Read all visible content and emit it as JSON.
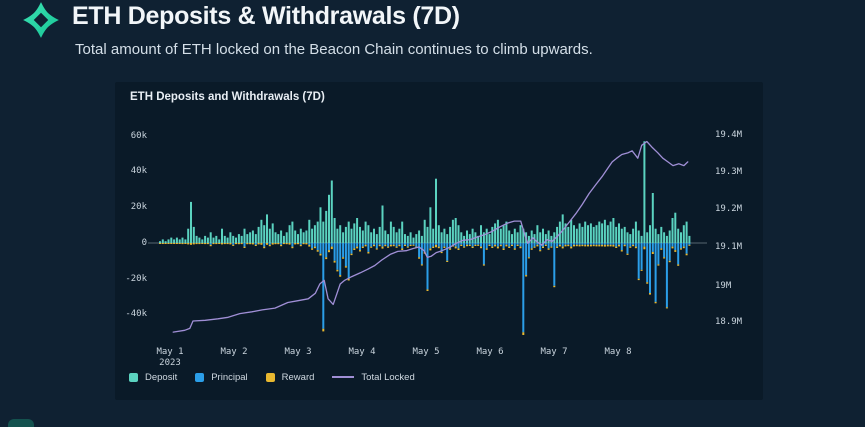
{
  "page": {
    "title": "ETH Deposits & Withdrawals (7D)",
    "subtitle": "Total amount of ETH locked on the Beacon Chain continues to climb upwards."
  },
  "colors": {
    "page_bg": "#0f2132",
    "panel_bg": "#0a1a28",
    "logo_teal_light": "#3ce3b4",
    "logo_teal_dark": "#17c495",
    "deposit": "#5bd3c0",
    "principal": "#2b9ee8",
    "reward": "#e8b830",
    "total_locked": "#a08fd6",
    "zero_line": "#55656f",
    "axis_text": "#c9d4dd"
  },
  "chart_data": {
    "type": "bar",
    "subtype": "stacked-bars-with-line-dual-axis",
    "title": "ETH Deposits and Withdrawals (7D)",
    "left_axis": {
      "ticks": [
        "60k",
        "40k",
        "20k",
        "0",
        "-20k",
        "-40k"
      ],
      "tick_values_k": [
        60,
        40,
        20,
        0,
        -20,
        -40
      ],
      "units": "ETH (thousands) per interval",
      "range_k": [
        -63,
        63
      ]
    },
    "right_axis": {
      "ticks": [
        "19.4M",
        "19.3M",
        "19.2M",
        "19.1M",
        "19M",
        "18.9M"
      ],
      "tick_values_m": [
        19.4,
        19.3,
        19.2,
        19.1,
        19.0,
        18.9
      ],
      "units": "ETH (millions) total locked",
      "range_m": [
        18.81,
        19.43
      ]
    },
    "x_axis": {
      "ticks": [
        "May 1",
        "May 2",
        "May 3",
        "May 4",
        "May 5",
        "May 6",
        "May 7",
        "May 8"
      ],
      "year_subline": "2023",
      "grid": false
    },
    "legend": [
      {
        "label": "Deposit",
        "swatch": "square",
        "color": "#5bd3c0"
      },
      {
        "label": "Principal",
        "swatch": "square",
        "color": "#2b9ee8"
      },
      {
        "label": "Reward",
        "swatch": "square",
        "color": "#e8b830"
      },
      {
        "label": "Total Locked",
        "swatch": "line",
        "color": "#a08fd6"
      }
    ],
    "bars": {
      "note": "values are [deposit_k_up, principal_k_down, reward_k_down] per interval; x = start_day + i*step_day (days after May 1 2023)",
      "start_day": -0.156,
      "step_day": 0.044,
      "values": [
        [
          1,
          0,
          0.3
        ],
        [
          2,
          0,
          0.4
        ],
        [
          1,
          0,
          0.3
        ],
        [
          2,
          0,
          0.5
        ],
        [
          3,
          0,
          0.5
        ],
        [
          2,
          0,
          0.4
        ],
        [
          3,
          0,
          0.5
        ],
        [
          2,
          0,
          0.5
        ],
        [
          3,
          0,
          0.6
        ],
        [
          2,
          0,
          0.5
        ],
        [
          8,
          0,
          0.8
        ],
        [
          23,
          0,
          1
        ],
        [
          9,
          0,
          0.8
        ],
        [
          4,
          0,
          0.6
        ],
        [
          3,
          0,
          0.6
        ],
        [
          2,
          0,
          0.5
        ],
        [
          4,
          0,
          0.6
        ],
        [
          3,
          0,
          0.6
        ],
        [
          6,
          -1,
          0.8
        ],
        [
          3,
          0,
          0.6
        ],
        [
          4,
          0,
          0.6
        ],
        [
          2,
          0,
          0.5
        ],
        [
          8,
          0,
          0.8
        ],
        [
          4,
          0,
          0.6
        ],
        [
          3,
          0,
          0.6
        ],
        [
          6,
          0,
          0.8
        ],
        [
          4,
          -1,
          0.6
        ],
        [
          3,
          0,
          0.6
        ],
        [
          5,
          0,
          0.7
        ],
        [
          4,
          0,
          0.6
        ],
        [
          8,
          -2,
          0.8
        ],
        [
          5,
          0,
          0.7
        ],
        [
          6,
          0,
          0.7
        ],
        [
          7,
          0,
          0.8
        ],
        [
          5,
          -1,
          0.7
        ],
        [
          9,
          0,
          0.8
        ],
        [
          13,
          0,
          1
        ],
        [
          10,
          -2,
          0.9
        ],
        [
          16,
          0,
          1
        ],
        [
          8,
          -1,
          0.8
        ],
        [
          11,
          0,
          0.9
        ],
        [
          6,
          0,
          0.7
        ],
        [
          5,
          0,
          0.7
        ],
        [
          7,
          -1,
          0.8
        ],
        [
          4,
          0,
          0.6
        ],
        [
          6,
          0,
          0.7
        ],
        [
          10,
          0,
          0.9
        ],
        [
          12,
          -2,
          0.9
        ],
        [
          7,
          0,
          0.8
        ],
        [
          5,
          0,
          0.7
        ],
        [
          8,
          -1,
          0.8
        ],
        [
          6,
          0,
          0.7
        ],
        [
          7,
          0,
          0.8
        ],
        [
          13,
          -1,
          1
        ],
        [
          8,
          -3,
          0.8
        ],
        [
          10,
          -2,
          0.9
        ],
        [
          12,
          -4,
          0.9
        ],
        [
          20,
          -6,
          1
        ],
        [
          12,
          -48,
          1.5
        ],
        [
          18,
          -8,
          1
        ],
        [
          27,
          -4,
          1.2
        ],
        [
          35,
          -2,
          1.4
        ],
        [
          14,
          -10,
          1
        ],
        [
          8,
          -15,
          0.9
        ],
        [
          10,
          -18,
          0.9
        ],
        [
          6,
          -8,
          0.8
        ],
        [
          9,
          -13,
          0.8
        ],
        [
          12,
          -20,
          1
        ],
        [
          8,
          -6,
          0.8
        ],
        [
          11,
          -3,
          0.9
        ],
        [
          14,
          -2,
          1
        ],
        [
          9,
          -4,
          0.8
        ],
        [
          7,
          -2,
          0.8
        ],
        [
          12,
          -1,
          0.9
        ],
        [
          10,
          -5,
          0.9
        ],
        [
          6,
          -2,
          0.7
        ],
        [
          8,
          -1,
          0.8
        ],
        [
          5,
          -3,
          0.7
        ],
        [
          9,
          -1,
          0.8
        ],
        [
          21,
          -2,
          1.1
        ],
        [
          7,
          -1,
          0.8
        ],
        [
          5,
          -2,
          0.7
        ],
        [
          12,
          -1,
          0.9
        ],
        [
          9,
          -1,
          0.8
        ],
        [
          6,
          -2,
          0.7
        ],
        [
          8,
          -1,
          0.8
        ],
        [
          12,
          -3,
          0.9
        ],
        [
          5,
          -1,
          0.7
        ],
        [
          4,
          -2,
          0.6
        ],
        [
          6,
          -1,
          0.7
        ],
        [
          3,
          -1,
          0.5
        ],
        [
          5,
          -2,
          0.7
        ],
        [
          7,
          -8,
          0.8
        ],
        [
          4,
          -12,
          0.6
        ],
        [
          13,
          -5,
          1
        ],
        [
          9,
          -26,
          0.9
        ],
        [
          20,
          -3,
          1.1
        ],
        [
          8,
          -2,
          0.8
        ],
        [
          36,
          -1,
          1.4
        ],
        [
          10,
          -2,
          0.9
        ],
        [
          6,
          -5,
          0.7
        ],
        [
          8,
          -2,
          0.8
        ],
        [
          5,
          -10,
          0.7
        ],
        [
          9,
          -3,
          0.8
        ],
        [
          13,
          -1,
          1
        ],
        [
          14,
          -2,
          1
        ],
        [
          10,
          -3,
          0.9
        ],
        [
          6,
          -1,
          0.7
        ],
        [
          4,
          -2,
          0.6
        ],
        [
          7,
          -1,
          0.8
        ],
        [
          5,
          -1,
          0.7
        ],
        [
          8,
          -2,
          0.8
        ],
        [
          6,
          -1,
          0.7
        ],
        [
          4,
          -1,
          0.6
        ],
        [
          10,
          -2,
          0.9
        ],
        [
          6,
          -12,
          0.7
        ],
        [
          8,
          -3,
          0.8
        ],
        [
          5,
          -1,
          0.7
        ],
        [
          9,
          -2,
          0.8
        ],
        [
          11,
          -1,
          0.9
        ],
        [
          13,
          -2,
          1
        ],
        [
          8,
          -1,
          0.8
        ],
        [
          10,
          -3,
          0.9
        ],
        [
          12,
          -1,
          0.9
        ],
        [
          7,
          -2,
          0.8
        ],
        [
          5,
          -1,
          0.7
        ],
        [
          8,
          -3,
          0.8
        ],
        [
          6,
          -1,
          0.7
        ],
        [
          10,
          -2,
          0.9
        ],
        [
          8,
          -50,
          1.5
        ],
        [
          6,
          -18,
          0.8
        ],
        [
          4,
          -8,
          0.6
        ],
        [
          7,
          -3,
          0.8
        ],
        [
          5,
          -2,
          0.7
        ],
        [
          10,
          -1,
          0.9
        ],
        [
          6,
          -4,
          0.7
        ],
        [
          8,
          -2,
          0.8
        ],
        [
          5,
          -1,
          0.7
        ],
        [
          7,
          -3,
          0.8
        ],
        [
          4,
          -2,
          0.6
        ],
        [
          6,
          -24,
          0.8
        ],
        [
          9,
          -2,
          0.8
        ],
        [
          12,
          -1,
          0.9
        ],
        [
          16,
          -2,
          1
        ],
        [
          11,
          -1,
          0.9
        ],
        [
          9,
          -1,
          0.8
        ],
        [
          13,
          -2,
          1
        ],
        [
          10,
          -1,
          0.9
        ],
        [
          8,
          -1,
          0.8
        ],
        [
          11,
          -1,
          0.9
        ],
        [
          9,
          -1,
          0.8
        ],
        [
          12,
          -1,
          0.9
        ],
        [
          10,
          -1,
          0.9
        ],
        [
          11,
          -1,
          0.9
        ],
        [
          9,
          -1,
          0.8
        ],
        [
          10,
          -1,
          0.9
        ],
        [
          12,
          -1,
          0.9
        ],
        [
          11,
          -1,
          0.9
        ],
        [
          13,
          -1,
          1
        ],
        [
          10,
          -1,
          0.9
        ],
        [
          12,
          -1,
          0.9
        ],
        [
          14,
          -1,
          1
        ],
        [
          9,
          -2,
          0.8
        ],
        [
          11,
          -1,
          0.9
        ],
        [
          8,
          -4,
          0.8
        ],
        [
          9,
          -1,
          0.8
        ],
        [
          6,
          -6,
          0.7
        ],
        [
          5,
          -2,
          0.7
        ],
        [
          8,
          -1,
          0.8
        ],
        [
          12,
          -2,
          0.9
        ],
        [
          7,
          -20,
          0.8
        ],
        [
          4,
          -15,
          0.6
        ],
        [
          57,
          -2,
          1.5
        ],
        [
          6,
          -22,
          0.8
        ],
        [
          10,
          -28,
          0.9
        ],
        [
          28,
          -5,
          1.2
        ],
        [
          8,
          -33,
          0.8
        ],
        [
          5,
          -12,
          0.7
        ],
        [
          9,
          -3,
          0.8
        ],
        [
          6,
          -8,
          0.7
        ],
        [
          4,
          -36,
          0.6
        ],
        [
          7,
          -10,
          0.8
        ],
        [
          14,
          -2,
          1
        ],
        [
          17,
          -4,
          1
        ],
        [
          8,
          -12,
          0.8
        ],
        [
          6,
          -3,
          0.7
        ],
        [
          10,
          -2,
          0.9
        ],
        [
          12,
          -6,
          0.9
        ],
        [
          4,
          -1,
          0.5
        ]
      ]
    },
    "total_locked": {
      "note": "points are [days_after_may1, total_locked_millions]",
      "points": [
        [
          0.05,
          18.87
        ],
        [
          0.23,
          18.875
        ],
        [
          0.31,
          18.88
        ],
        [
          0.36,
          18.9
        ],
        [
          0.55,
          18.902
        ],
        [
          0.75,
          18.906
        ],
        [
          0.91,
          18.91
        ],
        [
          1.09,
          18.92
        ],
        [
          1.28,
          18.925
        ],
        [
          1.44,
          18.93
        ],
        [
          1.64,
          18.935
        ],
        [
          1.84,
          18.95
        ],
        [
          2.0,
          18.955
        ],
        [
          2.16,
          18.96
        ],
        [
          2.27,
          18.975
        ],
        [
          2.34,
          19.0
        ],
        [
          2.41,
          19.01
        ],
        [
          2.47,
          18.96
        ],
        [
          2.55,
          18.945
        ],
        [
          2.66,
          19.0
        ],
        [
          2.73,
          19.01
        ],
        [
          2.84,
          19.02
        ],
        [
          2.97,
          19.03
        ],
        [
          3.09,
          19.04
        ],
        [
          3.2,
          19.05
        ],
        [
          3.31,
          19.065
        ],
        [
          3.44,
          19.08
        ],
        [
          3.56,
          19.088
        ],
        [
          3.69,
          19.09
        ],
        [
          3.8,
          19.096
        ],
        [
          3.89,
          19.1
        ],
        [
          3.97,
          19.09
        ],
        [
          4.02,
          19.072
        ],
        [
          4.08,
          19.075
        ],
        [
          4.16,
          19.085
        ],
        [
          4.25,
          19.09
        ],
        [
          4.38,
          19.1
        ],
        [
          4.47,
          19.11
        ],
        [
          4.58,
          19.118
        ],
        [
          4.69,
          19.12
        ],
        [
          4.8,
          19.127
        ],
        [
          4.91,
          19.133
        ],
        [
          5.03,
          19.142
        ],
        [
          5.16,
          19.155
        ],
        [
          5.28,
          19.165
        ],
        [
          5.38,
          19.17
        ],
        [
          5.48,
          19.17
        ],
        [
          5.55,
          19.13
        ],
        [
          5.59,
          19.11
        ],
        [
          5.67,
          19.125
        ],
        [
          5.73,
          19.115
        ],
        [
          5.81,
          19.105
        ],
        [
          5.89,
          19.12
        ],
        [
          5.97,
          19.115
        ],
        [
          6.06,
          19.13
        ],
        [
          6.16,
          19.15
        ],
        [
          6.25,
          19.17
        ],
        [
          6.34,
          19.19
        ],
        [
          6.44,
          19.215
        ],
        [
          6.55,
          19.245
        ],
        [
          6.66,
          19.27
        ],
        [
          6.75,
          19.29
        ],
        [
          6.83,
          19.31
        ],
        [
          6.91,
          19.33
        ],
        [
          6.98,
          19.34
        ],
        [
          7.06,
          19.35
        ],
        [
          7.16,
          19.355
        ],
        [
          7.22,
          19.36
        ],
        [
          7.31,
          19.34
        ],
        [
          7.37,
          19.375
        ],
        [
          7.45,
          19.385
        ],
        [
          7.53,
          19.37
        ],
        [
          7.62,
          19.355
        ],
        [
          7.7,
          19.34
        ],
        [
          7.78,
          19.33
        ],
        [
          7.86,
          19.32
        ],
        [
          7.95,
          19.325
        ],
        [
          8.03,
          19.32
        ],
        [
          8.09,
          19.33
        ]
      ]
    }
  }
}
